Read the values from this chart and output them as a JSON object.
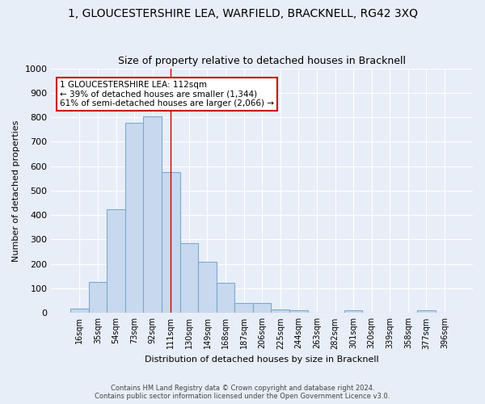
{
  "title": "1, GLOUCESTERSHIRE LEA, WARFIELD, BRACKNELL, RG42 3XQ",
  "subtitle": "Size of property relative to detached houses in Bracknell",
  "xlabel": "Distribution of detached houses by size in Bracknell",
  "ylabel": "Number of detached properties",
  "categories": [
    "16sqm",
    "35sqm",
    "54sqm",
    "73sqm",
    "92sqm",
    "111sqm",
    "130sqm",
    "149sqm",
    "168sqm",
    "187sqm",
    "206sqm",
    "225sqm",
    "244sqm",
    "263sqm",
    "282sqm",
    "301sqm",
    "320sqm",
    "339sqm",
    "358sqm",
    "377sqm",
    "396sqm"
  ],
  "values": [
    18,
    125,
    425,
    778,
    803,
    575,
    285,
    210,
    122,
    40,
    40,
    15,
    10,
    0,
    0,
    10,
    0,
    0,
    0,
    10,
    0
  ],
  "bar_color": "#c8d9ee",
  "bar_edge_color": "#7aaad0",
  "vline_bin": 5,
  "annotation_text": "1 GLOUCESTERSHIRE LEA: 112sqm\n← 39% of detached houses are smaller (1,344)\n61% of semi-detached houses are larger (2,066) →",
  "annotation_box_color": "#ffffff",
  "annotation_box_edge": "#cc0000",
  "footer1": "Contains HM Land Registry data © Crown copyright and database right 2024.",
  "footer2": "Contains public sector information licensed under the Open Government Licence v3.0.",
  "background_color": "#e8eef8",
  "grid_color": "#ffffff",
  "ylim": [
    0,
    1000
  ],
  "yticks": [
    0,
    100,
    200,
    300,
    400,
    500,
    600,
    700,
    800,
    900,
    1000
  ]
}
